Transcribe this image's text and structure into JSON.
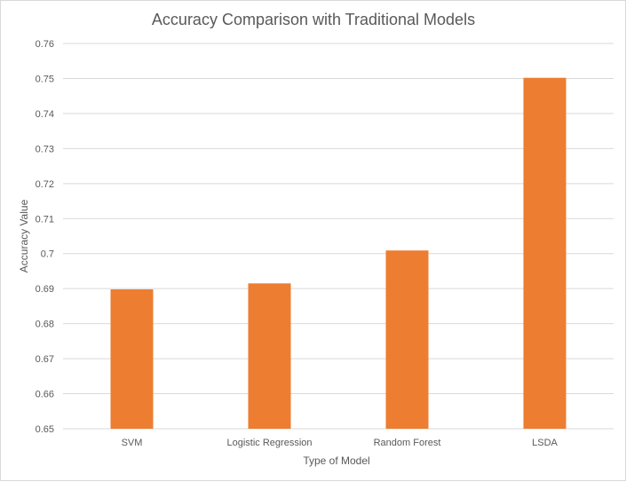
{
  "chart_data": {
    "type": "bar",
    "title": "Accuracy Comparison with Traditional Models",
    "xlabel": "Type of Model",
    "ylabel": "Accuracy Value",
    "categories": [
      "SVM",
      "Logistic Regression",
      "Random Forest",
      "LSDA"
    ],
    "values": [
      0.6898,
      0.6915,
      0.7009,
      0.7502
    ],
    "ylim": [
      0.65,
      0.76
    ],
    "yticks": [
      "0.65",
      "0.66",
      "0.67",
      "0.68",
      "0.69",
      "0.7",
      "0.71",
      "0.72",
      "0.73",
      "0.74",
      "0.75",
      "0.76"
    ],
    "grid": true,
    "legend": "none",
    "bar_color": "#ED7D31"
  }
}
